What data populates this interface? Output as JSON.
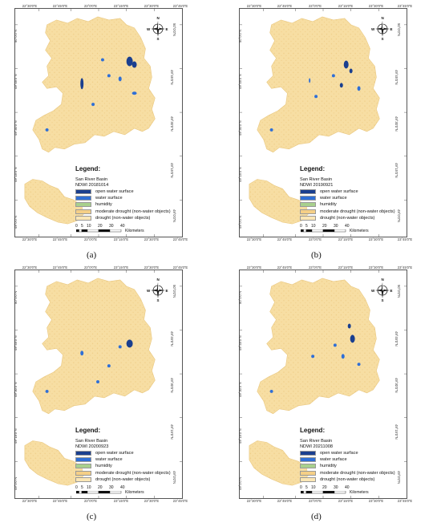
{
  "panels": [
    {
      "id": "a",
      "caption": "(a)",
      "legend_title": "Legend:",
      "basin": "San River Basin",
      "ndwi_label": "NDWI  20181014"
    },
    {
      "id": "b",
      "caption": "(b)",
      "legend_title": "Legend:",
      "basin": "San River Basin",
      "ndwi_label": "NDWI 20190921"
    },
    {
      "id": "c",
      "caption": "(c)",
      "legend_title": "Legend:",
      "basin": "San River Basin",
      "ndwi_label": "NDWI  20200923"
    },
    {
      "id": "d",
      "caption": "(d)",
      "legend_title": "Legend:",
      "basin": "San River Basin",
      "ndwi_label": "NDWI  20211008"
    }
  ],
  "legend_items": [
    {
      "label": "open water surface",
      "color": "#1a3f8f"
    },
    {
      "label": "water surface",
      "color": "#2f6fd6"
    },
    {
      "label": "humidity",
      "color": "#a8d08d"
    },
    {
      "label": "moderate drought (non-water objects)",
      "color": "#f5cf86"
    },
    {
      "label": "drought (non-water objects)",
      "color": "#fbe6b5"
    }
  ],
  "scale": {
    "ticks": [
      "0",
      "5",
      "10",
      "20",
      "30",
      "40"
    ],
    "unit": "Kilometers"
  },
  "longitude_ticks": [
    "22°30'0\"E",
    "22°45'0\"E",
    "23°0'0\"E",
    "23°15'0\"E",
    "23°30'0\"E",
    "23°45'0\"E"
  ],
  "latitude_ticks": [
    "50°0'0\"N",
    "49°45'0\"N",
    "49°30'0\"N",
    "49°15'0\"N",
    "49°0'0\"N"
  ],
  "compass": {
    "n": "N",
    "s": "S",
    "e": "E",
    "w": "W"
  },
  "colors": {
    "basin_fill": "#f7deA3",
    "basin_texture": "#efcc86",
    "water_dark": "#1a3f8f",
    "water": "#2f6fd6"
  }
}
